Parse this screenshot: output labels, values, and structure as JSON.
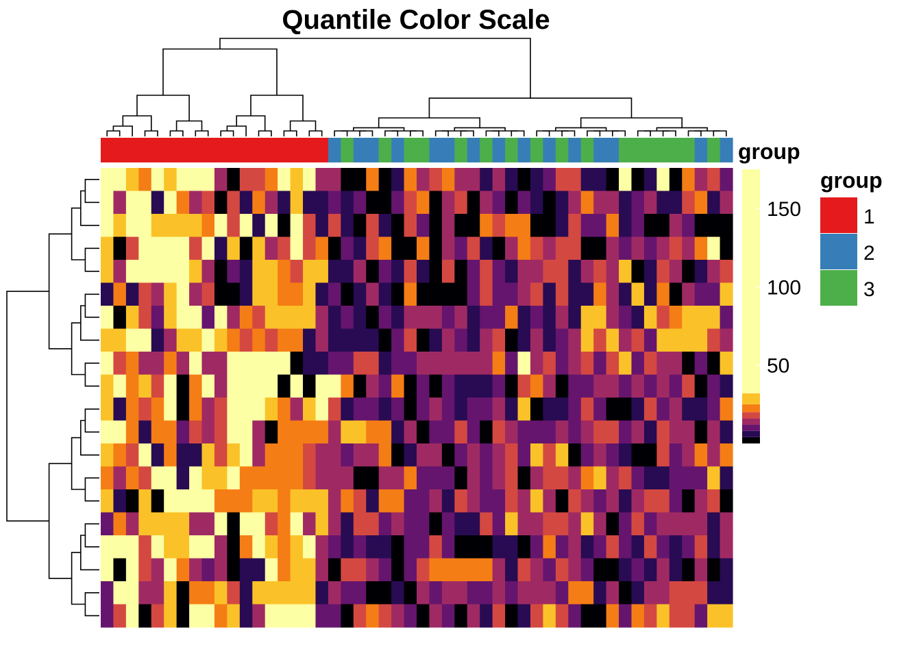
{
  "chart_data": {
    "type": "heatmap",
    "title": "Quantile Color Scale",
    "rows": 20,
    "columns": 50,
    "column_annotation": {
      "name": "group",
      "values": [
        1,
        1,
        1,
        1,
        1,
        1,
        1,
        1,
        1,
        1,
        1,
        1,
        1,
        1,
        1,
        1,
        1,
        1,
        2,
        3,
        2,
        2,
        3,
        2,
        3,
        3,
        2,
        2,
        3,
        2,
        3,
        2,
        3,
        2,
        3,
        2,
        3,
        2,
        3,
        2,
        2,
        3,
        3,
        3,
        3,
        3,
        3,
        2,
        3,
        2
      ]
    },
    "annotation_legend": {
      "title": "group",
      "items": [
        {
          "label": "1",
          "color": "#E41A1C"
        },
        {
          "label": "2",
          "color": "#377EB8"
        },
        {
          "label": "3",
          "color": "#4DAF4A"
        }
      ]
    },
    "color_scale": {
      "type": "quantile",
      "colors": [
        "#000004",
        "#280b53",
        "#65156e",
        "#9f2a63",
        "#d44842",
        "#f57d15",
        "#fac228",
        "#fcffa4"
      ],
      "breaks": [
        0,
        4,
        8,
        12,
        16,
        20,
        25,
        32,
        175
      ],
      "ticks": [
        50,
        100,
        150
      ],
      "range": [
        0,
        175
      ]
    },
    "matrix": [
      [
        7,
        7,
        6,
        5,
        7,
        6,
        7,
        7,
        7,
        3,
        0,
        4,
        4,
        5,
        7,
        6,
        7,
        3,
        3,
        0,
        0,
        5,
        0,
        1,
        5,
        3,
        4,
        5,
        3,
        3,
        1,
        3,
        1,
        0,
        1,
        2,
        4,
        4,
        1,
        1,
        0,
        7,
        0,
        1,
        7,
        0,
        5,
        3,
        4,
        2
      ],
      [
        7,
        3,
        7,
        7,
        1,
        7,
        5,
        3,
        4,
        0,
        4,
        1,
        5,
        3,
        1,
        6,
        1,
        1,
        2,
        1,
        2,
        0,
        0,
        2,
        4,
        5,
        0,
        3,
        4,
        0,
        3,
        2,
        0,
        2,
        1,
        0,
        1,
        3,
        5,
        3,
        3,
        1,
        2,
        3,
        1,
        1,
        4,
        5,
        1,
        3
      ],
      [
        7,
        6,
        7,
        7,
        6,
        6,
        6,
        6,
        5,
        7,
        4,
        7,
        1,
        7,
        0,
        7,
        4,
        1,
        4,
        1,
        0,
        4,
        1,
        0,
        4,
        2,
        0,
        3,
        0,
        0,
        5,
        4,
        5,
        5,
        0,
        0,
        1,
        4,
        2,
        2,
        5,
        1,
        2,
        0,
        0,
        3,
        2,
        0,
        0,
        0
      ],
      [
        6,
        0,
        4,
        7,
        7,
        7,
        7,
        4,
        7,
        1,
        6,
        0,
        6,
        3,
        4,
        7,
        4,
        5,
        0,
        2,
        1,
        4,
        5,
        0,
        0,
        5,
        0,
        3,
        2,
        4,
        1,
        0,
        3,
        5,
        4,
        3,
        4,
        4,
        0,
        0,
        3,
        2,
        3,
        2,
        3,
        4,
        3,
        5,
        7,
        0
      ],
      [
        6,
        3,
        7,
        7,
        7,
        7,
        7,
        6,
        3,
        0,
        2,
        1,
        6,
        6,
        5,
        4,
        6,
        6,
        1,
        1,
        3,
        0,
        2,
        1,
        4,
        1,
        0,
        4,
        0,
        2,
        4,
        2,
        1,
        3,
        3,
        4,
        4,
        1,
        3,
        4,
        3,
        6,
        0,
        1,
        4,
        3,
        0,
        1,
        3,
        4
      ],
      [
        1,
        5,
        1,
        4,
        3,
        6,
        7,
        3,
        4,
        0,
        0,
        1,
        6,
        6,
        5,
        5,
        6,
        1,
        2,
        0,
        1,
        3,
        1,
        0,
        5,
        0,
        0,
        0,
        0,
        2,
        4,
        2,
        2,
        3,
        4,
        1,
        4,
        1,
        1,
        5,
        3,
        1,
        6,
        1,
        5,
        0,
        3,
        2,
        2,
        6
      ],
      [
        7,
        0,
        6,
        4,
        2,
        6,
        7,
        7,
        2,
        7,
        3,
        5,
        4,
        6,
        6,
        6,
        6,
        3,
        1,
        2,
        1,
        0,
        2,
        1,
        3,
        3,
        3,
        2,
        3,
        1,
        2,
        2,
        5,
        1,
        2,
        1,
        3,
        1,
        6,
        6,
        3,
        2,
        1,
        6,
        4,
        5,
        6,
        6,
        6,
        2
      ],
      [
        6,
        6,
        7,
        7,
        1,
        3,
        6,
        6,
        7,
        6,
        5,
        4,
        5,
        4,
        5,
        5,
        1,
        3,
        1,
        1,
        1,
        1,
        0,
        2,
        4,
        0,
        1,
        3,
        2,
        1,
        3,
        4,
        0,
        1,
        3,
        1,
        2,
        3,
        6,
        4,
        6,
        3,
        4,
        2,
        6,
        6,
        6,
        6,
        4,
        3
      ],
      [
        7,
        4,
        5,
        3,
        3,
        5,
        3,
        7,
        3,
        3,
        7,
        7,
        7,
        7,
        7,
        0,
        1,
        1,
        2,
        2,
        4,
        4,
        1,
        2,
        2,
        3,
        3,
        3,
        3,
        3,
        3,
        5,
        2,
        7,
        3,
        4,
        2,
        3,
        4,
        2,
        4,
        6,
        2,
        4,
        3,
        3,
        0,
        2,
        0,
        6
      ],
      [
        6,
        7,
        5,
        6,
        4,
        7,
        0,
        5,
        7,
        3,
        7,
        7,
        7,
        7,
        0,
        7,
        0,
        7,
        7,
        5,
        0,
        3,
        2,
        5,
        0,
        2,
        0,
        2,
        1,
        1,
        1,
        2,
        0,
        4,
        5,
        3,
        0,
        2,
        2,
        3,
        3,
        2,
        3,
        2,
        3,
        2,
        4,
        0,
        2,
        1
      ],
      [
        6,
        1,
        5,
        4,
        5,
        7,
        0,
        5,
        3,
        4,
        7,
        7,
        7,
        6,
        5,
        3,
        6,
        7,
        4,
        1,
        2,
        2,
        1,
        2,
        0,
        2,
        3,
        2,
        1,
        2,
        2,
        3,
        1,
        6,
        0,
        1,
        1,
        2,
        4,
        2,
        0,
        0,
        1,
        4,
        2,
        3,
        1,
        1,
        2,
        5
      ],
      [
        7,
        7,
        5,
        1,
        5,
        5,
        2,
        4,
        3,
        4,
        7,
        7,
        3,
        0,
        5,
        5,
        5,
        5,
        3,
        6,
        6,
        5,
        5,
        1,
        3,
        0,
        2,
        2,
        4,
        2,
        0,
        4,
        3,
        2,
        2,
        2,
        3,
        2,
        3,
        4,
        4,
        2,
        3,
        1,
        4,
        3,
        3,
        0,
        3,
        1
      ],
      [
        6,
        5,
        4,
        7,
        1,
        5,
        1,
        1,
        6,
        4,
        6,
        7,
        3,
        5,
        5,
        5,
        4,
        3,
        3,
        2,
        3,
        3,
        5,
        0,
        1,
        3,
        3,
        0,
        2,
        3,
        2,
        3,
        4,
        2,
        6,
        4,
        6,
        0,
        2,
        3,
        2,
        1,
        0,
        0,
        4,
        2,
        3,
        5,
        3,
        5
      ],
      [
        5,
        3,
        5,
        4,
        7,
        7,
        1,
        7,
        6,
        6,
        7,
        5,
        5,
        5,
        5,
        5,
        4,
        3,
        3,
        3,
        0,
        0,
        3,
        3,
        5,
        2,
        2,
        2,
        0,
        3,
        2,
        3,
        4,
        0,
        3,
        4,
        4,
        3,
        5,
        6,
        3,
        4,
        2,
        1,
        1,
        2,
        2,
        2,
        6,
        1
      ],
      [
        6,
        1,
        0,
        6,
        0,
        7,
        7,
        7,
        7,
        5,
        5,
        5,
        6,
        6,
        5,
        6,
        6,
        6,
        3,
        5,
        4,
        1,
        5,
        5,
        2,
        2,
        3,
        1,
        4,
        3,
        2,
        2,
        4,
        3,
        6,
        3,
        0,
        4,
        3,
        2,
        3,
        1,
        3,
        4,
        4,
        2,
        0,
        3,
        4,
        0
      ],
      [
        2,
        5,
        3,
        6,
        6,
        6,
        6,
        3,
        3,
        7,
        0,
        7,
        7,
        4,
        5,
        7,
        3,
        6,
        3,
        1,
        4,
        4,
        2,
        3,
        2,
        2,
        0,
        2,
        1,
        1,
        4,
        2,
        6,
        3,
        3,
        4,
        4,
        3,
        6,
        3,
        0,
        2,
        4,
        2,
        3,
        3,
        3,
        3,
        1,
        3
      ],
      [
        7,
        7,
        7,
        4,
        7,
        6,
        6,
        7,
        7,
        3,
        0,
        5,
        7,
        6,
        5,
        6,
        7,
        3,
        2,
        1,
        2,
        1,
        1,
        0,
        2,
        2,
        4,
        2,
        0,
        0,
        0,
        1,
        1,
        0,
        2,
        5,
        2,
        3,
        1,
        2,
        4,
        2,
        1,
        4,
        2,
        1,
        2,
        4,
        1,
        3
      ],
      [
        7,
        0,
        7,
        4,
        3,
        7,
        5,
        3,
        2,
        3,
        0,
        1,
        1,
        7,
        5,
        6,
        6,
        3,
        0,
        4,
        4,
        3,
        2,
        0,
        2,
        4,
        5,
        5,
        5,
        5,
        5,
        3,
        1,
        4,
        3,
        2,
        4,
        3,
        2,
        0,
        0,
        1,
        2,
        1,
        3,
        1,
        0,
        3,
        0,
        1
      ],
      [
        2,
        7,
        7,
        3,
        3,
        6,
        0,
        5,
        5,
        6,
        4,
        1,
        6,
        6,
        6,
        6,
        6,
        1,
        3,
        2,
        2,
        0,
        0,
        1,
        0,
        3,
        2,
        3,
        3,
        2,
        2,
        3,
        2,
        3,
        3,
        3,
        2,
        5,
        5,
        1,
        3,
        0,
        1,
        3,
        3,
        4,
        4,
        4,
        1,
        1
      ],
      [
        2,
        4,
        7,
        0,
        4,
        6,
        0,
        7,
        7,
        5,
        6,
        1,
        3,
        7,
        7,
        7,
        7,
        2,
        2,
        0,
        4,
        5,
        4,
        3,
        2,
        0,
        3,
        2,
        0,
        3,
        1,
        4,
        0,
        1,
        4,
        6,
        4,
        2,
        0,
        0,
        5,
        2,
        5,
        4,
        6,
        4,
        4,
        2,
        6,
        6
      ]
    ]
  }
}
